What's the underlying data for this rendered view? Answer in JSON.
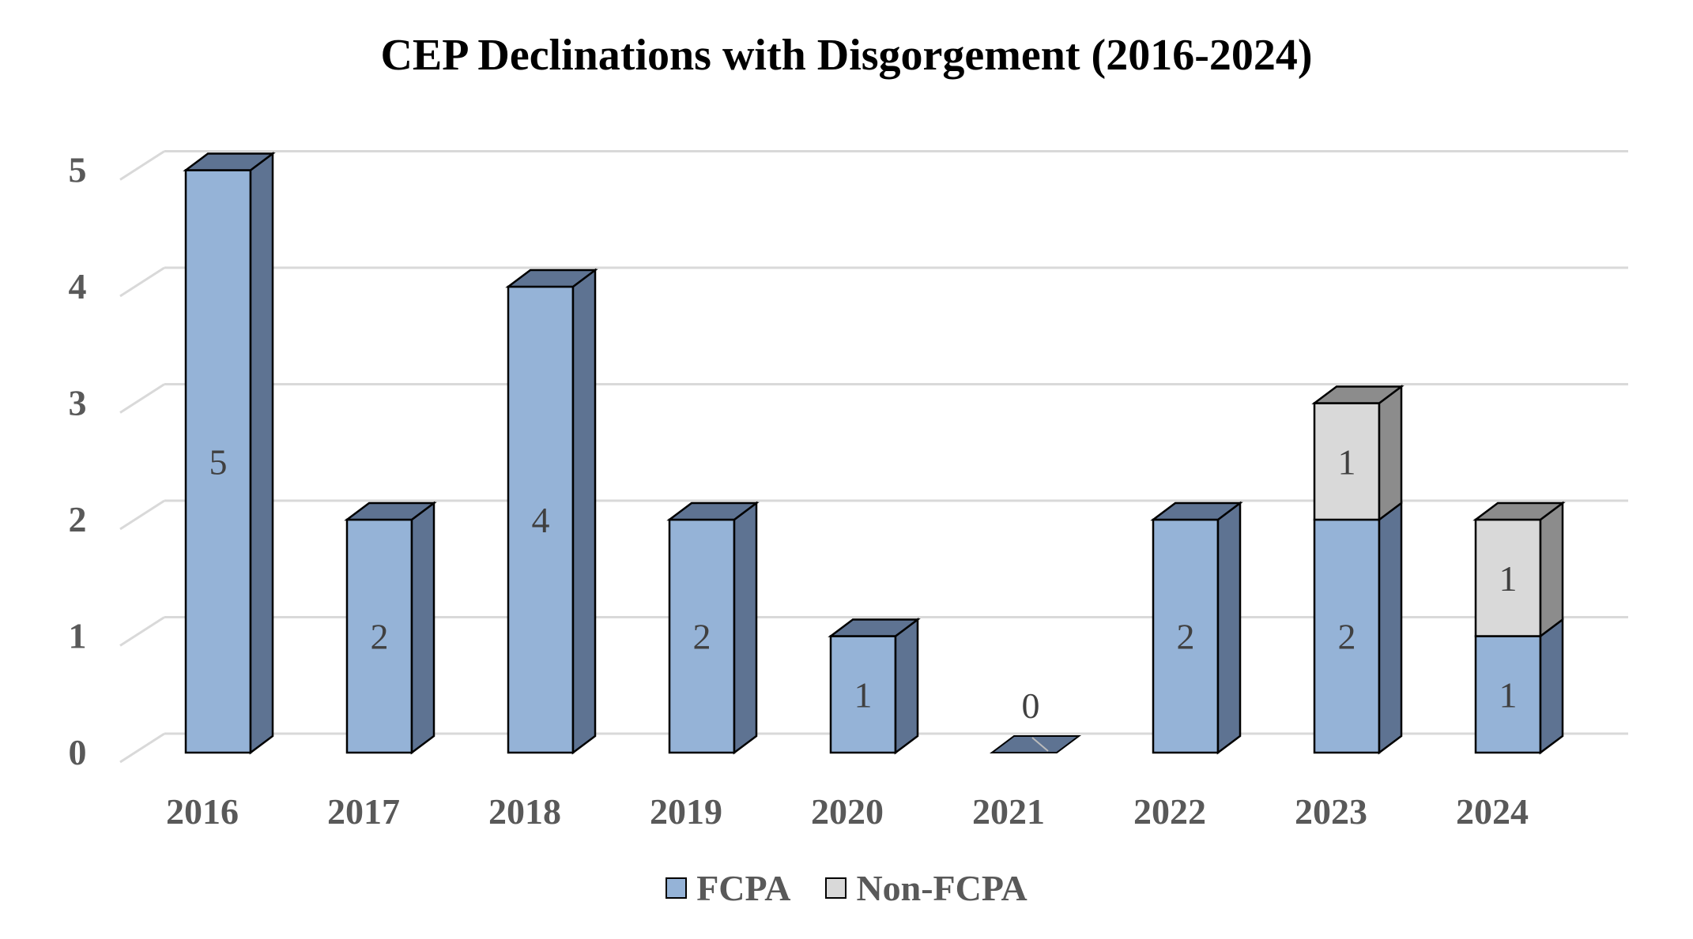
{
  "chart_data": {
    "type": "bar",
    "stacked": true,
    "three_d": true,
    "title": "CEP Declinations with Disgorgement (2016-2024)",
    "categories": [
      "2016",
      "2017",
      "2018",
      "2019",
      "2020",
      "2021",
      "2022",
      "2023",
      "2024"
    ],
    "series": [
      {
        "name": "FCPA",
        "values": [
          5,
          2,
          4,
          2,
          1,
          0,
          2,
          2,
          1
        ],
        "color": "#95B3D7",
        "side_color": "#5E7392",
        "data_labels": [
          "5",
          "2",
          "4",
          "2",
          "1",
          "0",
          "2",
          "2",
          "1"
        ]
      },
      {
        "name": "Non-FCPA",
        "values": [
          0,
          0,
          0,
          0,
          0,
          0,
          0,
          1,
          1
        ],
        "color": "#D9D9D9",
        "side_color": "#8C8C8C",
        "data_labels": [
          "",
          "",
          "",
          "",
          "",
          "",
          "",
          "1",
          "1"
        ]
      }
    ],
    "y_ticks": [
      "0",
      "1",
      "2",
      "3",
      "4",
      "5"
    ],
    "ylim": [
      0,
      5
    ],
    "xlabel": "",
    "ylabel": "",
    "grid": true,
    "legend": "bottom",
    "grid_color": "#D9D9D9",
    "tick_label_color": "#595959"
  }
}
